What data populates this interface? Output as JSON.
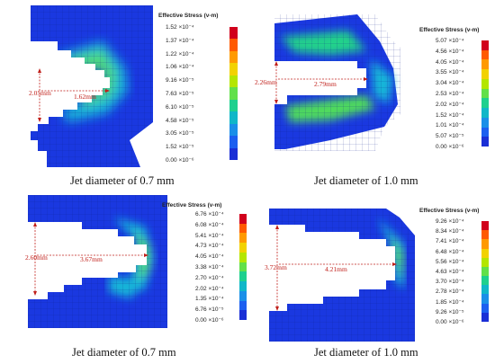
{
  "panels": [
    {
      "legend_title": "Effective Stress (v-m)",
      "legend_labels": [
        "1.52 ×10⁻⁴",
        "1.37 ×10⁻⁴",
        "1.22 ×10⁻⁴",
        "1.06 ×10⁻⁴",
        "9.16 ×10⁻⁵",
        "7.63 ×10⁻⁵",
        "6.10 ×10⁻⁵",
        "4.58 ×10⁻⁵",
        "3.05 ×10⁻⁵",
        "1.52 ×10⁻⁵",
        "0.00 ×10⁻⁶"
      ],
      "dim_vertical": "2.05mm",
      "dim_horizontal": "1.62mm",
      "caption": "Jet diameter of 0.7 mm"
    },
    {
      "legend_title": "Effective Stress (v-m)",
      "legend_labels": [
        "5.07 ×10⁻⁴",
        "4.56 ×10⁻⁴",
        "4.05 ×10⁻⁴",
        "3.55 ×10⁻⁴",
        "3.04 ×10⁻⁴",
        "2.53 ×10⁻⁴",
        "2.02 ×10⁻⁴",
        "1.52 ×10⁻⁴",
        "1.01 ×10⁻⁴",
        "5.07 ×10⁻⁵",
        "0.00 ×10⁻⁶"
      ],
      "dim_vertical": "2.26mm",
      "dim_horizontal": "2.79mm",
      "caption": "Jet diameter of 1.0 mm"
    },
    {
      "legend_title": "Effective Stress (v-m)",
      "legend_labels": [
        "6.76 ×10⁻⁴",
        "6.08 ×10⁻⁴",
        "5.41 ×10⁻⁴",
        "4.73 ×10⁻⁴",
        "4.05 ×10⁻⁴",
        "3.38 ×10⁻⁴",
        "2.70 ×10⁻⁴",
        "2.02 ×10⁻⁴",
        "1.35 ×10⁻⁴",
        "6.76 ×10⁻⁵",
        "0.00 ×10⁻⁶"
      ],
      "dim_vertical": "2.60mm",
      "dim_horizontal": "3.67mm",
      "caption": "Jet diameter of 0.7 mm"
    },
    {
      "legend_title": "Effective Stress (v-m)",
      "legend_labels": [
        "9.26 ×10⁻⁴",
        "8.34 ×10⁻⁴",
        "7.41 ×10⁻⁴",
        "6.48 ×10⁻⁴",
        "5.56 ×10⁻⁴",
        "4.63 ×10⁻⁴",
        "3.70 ×10⁻⁴",
        "2.78 ×10⁻⁴",
        "1.85 ×10⁻⁴",
        "9.26 ×10⁻⁵",
        "0.00 ×10⁻⁶"
      ],
      "dim_vertical": "3.72mm",
      "dim_horizontal": "4.21mm",
      "caption": "Jet diameter of 1.0 mm"
    }
  ],
  "colormap": [
    "#d1001c",
    "#ff5a00",
    "#ff9a00",
    "#f2d200",
    "#b4e600",
    "#62e04a",
    "#1ed08e",
    "#10b7c8",
    "#1a8fe8",
    "#1c5ff0",
    "#1a2fd6"
  ]
}
